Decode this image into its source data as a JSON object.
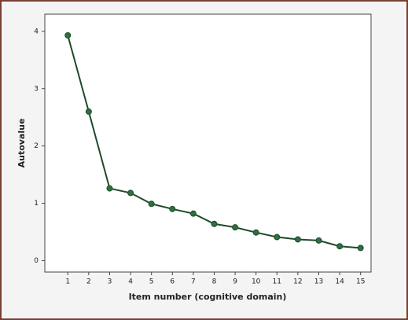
{
  "chart_data": {
    "type": "line",
    "xlabel": "Item number (cognitive domain)",
    "ylabel": "Autovalue",
    "x": [
      1,
      2,
      3,
      4,
      5,
      6,
      7,
      8,
      9,
      10,
      11,
      12,
      13,
      14,
      15
    ],
    "series": [
      {
        "name": null,
        "color": "#1f4a2a",
        "values": [
          3.93,
          2.6,
          1.26,
          1.18,
          0.99,
          0.9,
          0.82,
          0.64,
          0.58,
          0.49,
          0.41,
          0.37,
          0.35,
          0.25,
          0.22
        ]
      }
    ],
    "xlim": [
      -0.1,
      15.5
    ],
    "xticks": [
      1,
      2,
      3,
      4,
      5,
      6,
      7,
      8,
      9,
      10,
      11,
      12,
      13,
      14,
      15
    ],
    "ylim": [
      -0.2,
      4.3
    ],
    "yticks": [
      0,
      1,
      2,
      3,
      4
    ],
    "grid": false
  }
}
